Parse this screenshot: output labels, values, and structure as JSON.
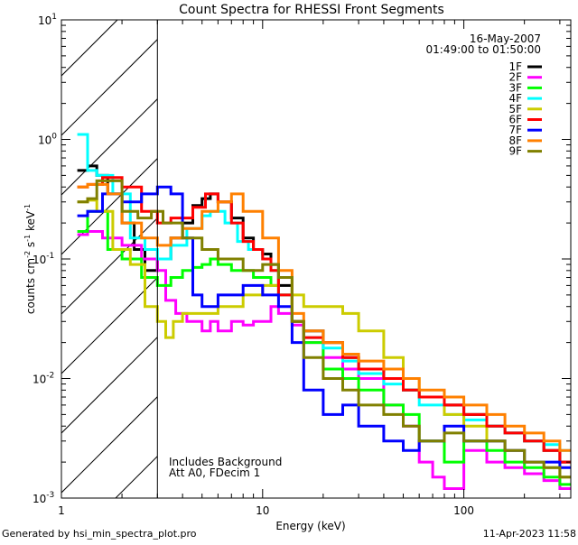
{
  "chart_data": {
    "type": "line",
    "title": "Count Spectra for RHESSI Front Segments",
    "xlabel": "Energy (keV)",
    "ylabel": "counts cm^-2 s^-1 keV^-1",
    "ylabel_parts": {
      "base": "counts cm",
      "e1": "-2",
      "s": " s",
      "e2": "-1",
      "k": " keV",
      "e3": "-1"
    },
    "xscale": "log",
    "yscale": "log",
    "xlim": [
      1,
      340
    ],
    "ylim": [
      0.001,
      10
    ],
    "xticks": [
      {
        "v": 1,
        "label": "1"
      },
      {
        "v": 10,
        "label": "10"
      },
      {
        "v": 100,
        "label": "100"
      }
    ],
    "yticks": [
      {
        "v": 10,
        "base": "10",
        "exp": "1"
      },
      {
        "v": 1,
        "base": "10",
        "exp": "0"
      },
      {
        "v": 0.1,
        "base": "10",
        "exp": "-1"
      },
      {
        "v": 0.01,
        "base": "10",
        "exp": "-2"
      },
      {
        "v": 0.001,
        "base": "10",
        "exp": "-3"
      }
    ],
    "excluded_region": [
      1,
      3
    ],
    "date": "16-May-2007",
    "time_range": "01:49:00 to 01:50:00",
    "annotations": [
      "Includes Background",
      "Att A0, FDecim 1"
    ],
    "legend_position": "top-right",
    "footer_left": "Generated by hsi_min_spectra_plot.pro",
    "footer_right": "11-Apr-2023 11:58",
    "series": [
      {
        "name": "1F",
        "color": "#000000",
        "x": [
          1.2,
          1.35,
          1.5,
          1.7,
          2,
          2.3,
          2.6,
          3,
          3.5,
          4,
          4.5,
          5,
          5.5,
          6,
          7,
          8,
          9,
          10,
          11,
          12,
          14,
          16,
          20,
          25,
          30,
          40,
          50,
          60,
          80,
          100,
          130,
          160,
          200,
          250,
          300
        ],
        "y": [
          0.55,
          0.6,
          0.5,
          0.35,
          0.2,
          0.12,
          0.08,
          0.1,
          0.15,
          0.2,
          0.28,
          0.32,
          0.35,
          0.3,
          0.22,
          0.15,
          0.12,
          0.11,
          0.09,
          0.06,
          0.03,
          0.025,
          0.02,
          0.015,
          0.012,
          0.01,
          0.008,
          0.007,
          0.006,
          0.005,
          0.004,
          0.0035,
          0.003,
          0.0025,
          0.002
        ]
      },
      {
        "name": "2F",
        "color": "#ff00ff",
        "x": [
          1.2,
          1.35,
          1.6,
          2,
          2.5,
          3,
          3.3,
          3.7,
          4.2,
          5,
          5.5,
          6,
          7,
          8,
          9,
          10,
          11,
          12,
          14,
          16,
          20,
          25,
          30,
          40,
          50,
          60,
          70,
          80,
          100,
          130,
          160,
          200,
          250,
          300
        ],
        "y": [
          0.16,
          0.17,
          0.15,
          0.13,
          0.1,
          0.08,
          0.045,
          0.035,
          0.03,
          0.025,
          0.03,
          0.025,
          0.03,
          0.028,
          0.03,
          0.03,
          0.04,
          0.035,
          0.028,
          0.02,
          0.015,
          0.012,
          0.01,
          0.006,
          0.004,
          0.002,
          0.0015,
          0.0012,
          0.0025,
          0.002,
          0.0018,
          0.0016,
          0.0014,
          0.0012
        ]
      },
      {
        "name": "3F",
        "color": "#00ff00",
        "x": [
          1.2,
          1.35,
          1.5,
          1.7,
          2,
          2.5,
          3,
          3.5,
          4,
          4.5,
          5,
          5.5,
          6,
          7,
          8,
          9,
          10,
          11,
          12,
          14,
          16,
          20,
          25,
          30,
          40,
          50,
          60,
          80,
          100,
          130,
          160,
          200,
          250,
          300
        ],
        "y": [
          0.17,
          0.25,
          0.25,
          0.12,
          0.1,
          0.07,
          0.06,
          0.07,
          0.08,
          0.085,
          0.09,
          0.1,
          0.09,
          0.08,
          0.08,
          0.07,
          0.07,
          0.06,
          0.05,
          0.03,
          0.02,
          0.012,
          0.01,
          0.008,
          0.006,
          0.005,
          0.003,
          0.002,
          0.003,
          0.0025,
          0.002,
          0.0018,
          0.0015,
          0.0013
        ]
      },
      {
        "name": "4F",
        "color": "#00ffff",
        "x": [
          1.2,
          1.35,
          1.5,
          1.8,
          2.2,
          2.6,
          3,
          3.5,
          4.2,
          5,
          5.5,
          6.5,
          7.5,
          8.5,
          10,
          11,
          12,
          14,
          16,
          20,
          25,
          30,
          40,
          50,
          60,
          80,
          100,
          130,
          160,
          200,
          250,
          300
        ],
        "y": [
          1.1,
          0.55,
          0.5,
          0.35,
          0.15,
          0.12,
          0.1,
          0.13,
          0.18,
          0.23,
          0.25,
          0.2,
          0.14,
          0.12,
          0.1,
          0.08,
          0.05,
          0.03,
          0.022,
          0.018,
          0.014,
          0.011,
          0.009,
          0.008,
          0.006,
          0.005,
          0.0045,
          0.004,
          0.0035,
          0.003,
          0.0028,
          0.0025
        ]
      },
      {
        "name": "5F",
        "color": "#cccc00",
        "x": [
          1.2,
          1.35,
          1.5,
          1.8,
          2.2,
          2.6,
          3,
          3.3,
          3.6,
          4,
          5,
          6,
          8,
          10,
          12,
          14,
          16,
          20,
          25,
          30,
          40,
          50,
          60,
          80,
          100,
          130,
          160,
          200,
          250,
          300
        ],
        "y": [
          0.3,
          0.31,
          0.25,
          0.12,
          0.09,
          0.04,
          0.03,
          0.022,
          0.03,
          0.035,
          0.035,
          0.04,
          0.05,
          0.06,
          0.07,
          0.05,
          0.04,
          0.04,
          0.035,
          0.025,
          0.015,
          0.01,
          0.007,
          0.005,
          0.004,
          0.003,
          0.0025,
          0.002,
          0.0018,
          0.0015
        ]
      },
      {
        "name": "6F",
        "color": "#ff0000",
        "x": [
          1.2,
          1.35,
          1.6,
          2,
          2.5,
          3,
          3.5,
          4.5,
          5.2,
          6,
          7,
          8,
          9,
          10,
          11,
          12,
          14,
          16,
          20,
          25,
          30,
          40,
          50,
          60,
          80,
          100,
          130,
          160,
          200,
          250,
          300
        ],
        "y": [
          0.4,
          0.42,
          0.48,
          0.4,
          0.25,
          0.2,
          0.22,
          0.27,
          0.35,
          0.3,
          0.2,
          0.14,
          0.12,
          0.1,
          0.08,
          0.05,
          0.03,
          0.022,
          0.02,
          0.015,
          0.012,
          0.01,
          0.008,
          0.007,
          0.006,
          0.005,
          0.004,
          0.0035,
          0.003,
          0.0025,
          0.002
        ]
      },
      {
        "name": "7F",
        "color": "#0000ff",
        "x": [
          1.2,
          1.35,
          1.6,
          2,
          2.5,
          3,
          3.5,
          4,
          4.5,
          5,
          6,
          8,
          10,
          12,
          14,
          16,
          20,
          25,
          30,
          40,
          50,
          60,
          80,
          100,
          130,
          160,
          200,
          250,
          300
        ],
        "y": [
          0.23,
          0.25,
          0.35,
          0.3,
          0.35,
          0.4,
          0.35,
          0.15,
          0.05,
          0.04,
          0.05,
          0.06,
          0.05,
          0.04,
          0.02,
          0.008,
          0.005,
          0.006,
          0.004,
          0.003,
          0.0025,
          0.003,
          0.004,
          0.003,
          0.003,
          0.0025,
          0.002,
          0.002,
          0.0018
        ]
      },
      {
        "name": "8F",
        "color": "#ff8000",
        "x": [
          1.2,
          1.35,
          1.7,
          2,
          2.5,
          3,
          3.5,
          4,
          5,
          6,
          7,
          8,
          10,
          12,
          14,
          16,
          20,
          25,
          30,
          40,
          50,
          60,
          80,
          100,
          130,
          160,
          200,
          250,
          300
        ],
        "y": [
          0.4,
          0.42,
          0.35,
          0.2,
          0.15,
          0.13,
          0.15,
          0.18,
          0.25,
          0.3,
          0.35,
          0.25,
          0.15,
          0.08,
          0.035,
          0.025,
          0.02,
          0.016,
          0.014,
          0.012,
          0.01,
          0.008,
          0.007,
          0.006,
          0.005,
          0.004,
          0.0035,
          0.003,
          0.0025
        ]
      },
      {
        "name": "9F",
        "color": "#808000",
        "x": [
          1.2,
          1.35,
          1.5,
          2,
          2.4,
          2.8,
          3.2,
          4,
          5,
          6,
          8,
          10,
          12,
          14,
          16,
          20,
          25,
          30,
          40,
          50,
          60,
          80,
          100,
          130,
          160,
          200,
          250,
          300
        ],
        "y": [
          0.3,
          0.32,
          0.45,
          0.25,
          0.22,
          0.25,
          0.2,
          0.15,
          0.12,
          0.1,
          0.08,
          0.09,
          0.07,
          0.03,
          0.015,
          0.01,
          0.008,
          0.006,
          0.005,
          0.004,
          0.003,
          0.0035,
          0.003,
          0.003,
          0.0025,
          0.002,
          0.0018,
          0.0015
        ]
      }
    ]
  }
}
